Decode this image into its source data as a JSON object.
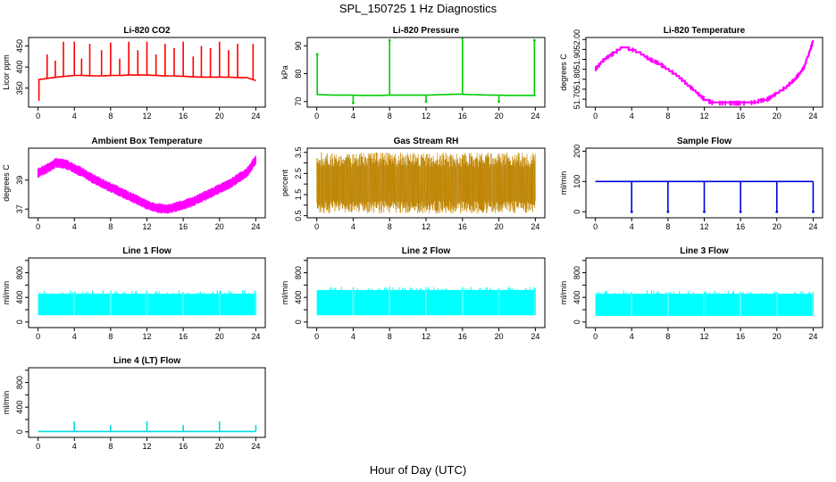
{
  "figure": {
    "title": "SPL_150725  1 Hz Diagnostics",
    "xlabel": "Hour of Day (UTC)"
  },
  "chart_data": [
    {
      "type": "line",
      "title": "Li-820 CO2",
      "ylabel": "Licor ppm",
      "color": "#ff0000",
      "xlim": [
        0,
        24
      ],
      "ylim": [
        305,
        470
      ],
      "xticks": [
        0,
        4,
        8,
        12,
        16,
        20,
        24
      ],
      "yticks": [
        350,
        400,
        450
      ],
      "x": [
        0,
        1,
        2,
        3,
        4,
        5,
        6,
        7,
        8,
        9,
        10,
        11,
        12,
        13,
        14,
        15,
        16,
        17,
        18,
        19,
        20,
        21,
        22,
        23,
        24
      ],
      "values": [
        370,
        373,
        376,
        378,
        380,
        380,
        379,
        379,
        380,
        380,
        381,
        381,
        381,
        380,
        379,
        379,
        378,
        377,
        376,
        376,
        376,
        376,
        375,
        375,
        368
      ],
      "spikes": [
        [
          0.1,
          320
        ],
        [
          1.0,
          430
        ],
        [
          1.9,
          415
        ],
        [
          2.8,
          460
        ],
        [
          4.0,
          460
        ],
        [
          4.8,
          420
        ],
        [
          5.7,
          455
        ],
        [
          7.0,
          440
        ],
        [
          8.0,
          458
        ],
        [
          9.0,
          420
        ],
        [
          10.0,
          460
        ],
        [
          11.0,
          440
        ],
        [
          12.0,
          460
        ],
        [
          13.0,
          430
        ],
        [
          14.0,
          455
        ],
        [
          15.0,
          445
        ],
        [
          16.0,
          460
        ],
        [
          17.1,
          425
        ],
        [
          18.0,
          450
        ],
        [
          19.0,
          445
        ],
        [
          20.0,
          460
        ],
        [
          21.0,
          440
        ],
        [
          22.0,
          455
        ],
        [
          23.7,
          455
        ]
      ]
    },
    {
      "type": "line",
      "title": "Li-820 Pressure",
      "ylabel": "kPa",
      "color": "#00cc00",
      "xlim": [
        0,
        24
      ],
      "ylim": [
        68,
        93
      ],
      "xticks": [
        0,
        4,
        8,
        12,
        16,
        20,
        24
      ],
      "yticks": [
        70,
        80,
        90
      ],
      "x": [
        0,
        1,
        2,
        3,
        4,
        5,
        6,
        7,
        8,
        9,
        10,
        11,
        12,
        13,
        14,
        15,
        16,
        17,
        18,
        19,
        20,
        21,
        22,
        23,
        24
      ],
      "values": [
        72.5,
        72.4,
        72.3,
        72.3,
        72.3,
        72.2,
        72.2,
        72.2,
        72.3,
        72.3,
        72.3,
        72.3,
        72.3,
        72.4,
        72.5,
        72.6,
        72.6,
        72.5,
        72.4,
        72.3,
        72.3,
        72.2,
        72.2,
        72.2,
        72.2
      ],
      "spikes": [
        [
          0.05,
          87
        ],
        [
          4.0,
          69.5
        ],
        [
          8.0,
          92
        ],
        [
          12.0,
          70
        ],
        [
          16.0,
          93
        ],
        [
          20.0,
          70
        ],
        [
          23.9,
          92
        ]
      ]
    },
    {
      "type": "line",
      "title": "Li-820 Temperature",
      "ylabel": "degrees C",
      "color": "#ff00ff",
      "xlim": [
        0,
        24
      ],
      "ylim": [
        51.66,
        52.01
      ],
      "xticks": [
        0,
        4,
        8,
        12,
        16,
        20,
        24
      ],
      "yticks": [
        51.7,
        51.75,
        51.8,
        51.85,
        51.9,
        51.95,
        52.0
      ],
      "ytick_labels": [
        "51.70",
        "",
        "51.80",
        "",
        "51.90",
        "",
        "52.00"
      ],
      "x": [
        0,
        1,
        2,
        3,
        4,
        5,
        6,
        7,
        8,
        9,
        10,
        11,
        12,
        13,
        14,
        15,
        16,
        17,
        18,
        19,
        20,
        21,
        22,
        23,
        24
      ],
      "values": [
        51.85,
        51.9,
        51.93,
        51.96,
        51.95,
        51.93,
        51.9,
        51.88,
        51.85,
        51.82,
        51.78,
        51.74,
        51.7,
        51.68,
        51.68,
        51.68,
        51.68,
        51.68,
        51.69,
        51.7,
        51.73,
        51.76,
        51.8,
        51.86,
        51.99
      ]
    },
    {
      "type": "line",
      "title": "Ambient Box Temperature",
      "ylabel": "degrees C",
      "color": "#ff00ff",
      "xlim": [
        0,
        24
      ],
      "ylim": [
        36.4,
        41.2
      ],
      "xticks": [
        0,
        4,
        8,
        12,
        16,
        20,
        24
      ],
      "yticks": [
        37,
        39
      ],
      "x": [
        0,
        1,
        2,
        3,
        4,
        5,
        6,
        7,
        8,
        9,
        10,
        11,
        12,
        13,
        14,
        15,
        16,
        17,
        18,
        19,
        20,
        21,
        22,
        23,
        24
      ],
      "values": [
        39.5,
        39.8,
        40.2,
        40.1,
        39.8,
        39.5,
        39.1,
        38.8,
        38.5,
        38.2,
        37.9,
        37.6,
        37.3,
        37.1,
        37.0,
        37.1,
        37.3,
        37.5,
        37.8,
        38.1,
        38.4,
        38.7,
        39.1,
        39.5,
        40.4
      ],
      "band": 0.35
    },
    {
      "type": "line",
      "title": "Gas Stream RH",
      "ylabel": "percent",
      "color": "#e6a000",
      "xlim": [
        0,
        24
      ],
      "ylim": [
        0.4,
        3.7
      ],
      "xticks": [
        0,
        4,
        8,
        12,
        16,
        20,
        24
      ],
      "yticks": [
        0.5,
        1.5,
        2.5,
        3.5
      ],
      "yminor": [
        1.0,
        2.0,
        3.0
      ],
      "x": [
        0,
        1,
        2,
        3,
        4,
        5,
        6,
        7,
        8,
        9,
        10,
        11,
        12,
        13,
        14,
        15,
        16,
        17,
        18,
        19,
        20,
        21,
        22,
        23,
        24
      ],
      "values": [
        2.0,
        2.0,
        2.0,
        2.0,
        2.0,
        2.0,
        2.0,
        2.0,
        2.0,
        2.0,
        2.0,
        2.0,
        2.0,
        2.0,
        2.0,
        2.0,
        2.0,
        2.0,
        2.0,
        2.0,
        2.0,
        2.0,
        2.0,
        2.0,
        2.0
      ],
      "band_low": 0.6,
      "band_high": 3.5
    },
    {
      "type": "line",
      "title": "Sample Flow",
      "ylabel": "ml/min",
      "color": "#0000dd",
      "xlim": [
        0,
        24
      ],
      "ylim": [
        -20,
        210
      ],
      "xticks": [
        0,
        4,
        8,
        12,
        16,
        20,
        24
      ],
      "yticks": [
        0,
        100,
        200
      ],
      "x": [
        0,
        1,
        2,
        3,
        4,
        5,
        6,
        7,
        8,
        9,
        10,
        11,
        12,
        13,
        14,
        15,
        16,
        17,
        18,
        19,
        20,
        21,
        22,
        23,
        24
      ],
      "values": [
        100,
        100,
        100,
        100,
        100,
        100,
        100,
        100,
        100,
        100,
        100,
        100,
        100,
        100,
        100,
        100,
        100,
        100,
        100,
        100,
        100,
        100,
        100,
        100,
        100
      ],
      "spikes": [
        [
          4.0,
          0
        ],
        [
          8.0,
          0
        ],
        [
          12.0,
          0
        ],
        [
          16.0,
          0
        ],
        [
          20.0,
          0
        ],
        [
          24.0,
          0
        ]
      ]
    },
    {
      "type": "line",
      "title": "Line 1 Flow",
      "ylabel": "ml/min",
      "color": "#00ffff",
      "xlim": [
        0,
        24
      ],
      "ylim": [
        -90,
        1040
      ],
      "xticks": [
        0,
        4,
        8,
        12,
        16,
        20,
        24
      ],
      "yticks": [
        0,
        200,
        400,
        600,
        800,
        1000
      ],
      "ytick_labels": [
        "0",
        "",
        "400",
        "",
        "800",
        ""
      ],
      "x": [
        0,
        24
      ],
      "values": [
        290,
        290
      ],
      "band_low": 110,
      "band_high": 460,
      "gaps": [
        4.0,
        8.0,
        12.0,
        16.0,
        20.0,
        24.0
      ]
    },
    {
      "type": "line",
      "title": "Line 2 Flow",
      "ylabel": "ml/min",
      "color": "#00ffff",
      "xlim": [
        0,
        24
      ],
      "ylim": [
        -90,
        1040
      ],
      "xticks": [
        0,
        4,
        8,
        12,
        16,
        20,
        24
      ],
      "yticks": [
        0,
        200,
        400,
        600,
        800,
        1000
      ],
      "ytick_labels": [
        "0",
        "",
        "400",
        "",
        "800",
        ""
      ],
      "x": [
        0,
        24
      ],
      "values": [
        320,
        320
      ],
      "band_low": 110,
      "band_high": 520,
      "gaps": [
        4.0,
        8.0,
        12.0,
        16.0,
        20.0,
        24.0
      ]
    },
    {
      "type": "line",
      "title": "Line 3 Flow",
      "ylabel": "ml/min",
      "color": "#00ffff",
      "xlim": [
        0,
        24
      ],
      "ylim": [
        -90,
        1040
      ],
      "xticks": [
        0,
        4,
        8,
        12,
        16,
        20,
        24
      ],
      "yticks": [
        0,
        200,
        400,
        600,
        800,
        1000
      ],
      "ytick_labels": [
        "0",
        "",
        "400",
        "",
        "800",
        ""
      ],
      "x": [
        0,
        24
      ],
      "values": [
        280,
        280
      ],
      "band_low": 100,
      "band_high": 460,
      "gaps": [
        4.0,
        8.0,
        12.0,
        16.0,
        20.0,
        24.0
      ]
    },
    {
      "type": "line",
      "title": "Line 4 (LT) Flow",
      "ylabel": "ml/min",
      "color": "#00dddd",
      "xlim": [
        0,
        24
      ],
      "ylim": [
        -90,
        1040
      ],
      "xticks": [
        0,
        4,
        8,
        12,
        16,
        20,
        24
      ],
      "yticks": [
        0,
        200,
        400,
        600,
        800,
        1000
      ],
      "ytick_labels": [
        "0",
        "",
        "400",
        "",
        "800",
        ""
      ],
      "x": [
        0,
        24
      ],
      "values": [
        5,
        5
      ],
      "spikes": [
        [
          4.0,
          170
        ],
        [
          8.0,
          110
        ],
        [
          12.0,
          170
        ],
        [
          16.0,
          110
        ],
        [
          20.0,
          170
        ],
        [
          24.0,
          110
        ]
      ]
    }
  ]
}
